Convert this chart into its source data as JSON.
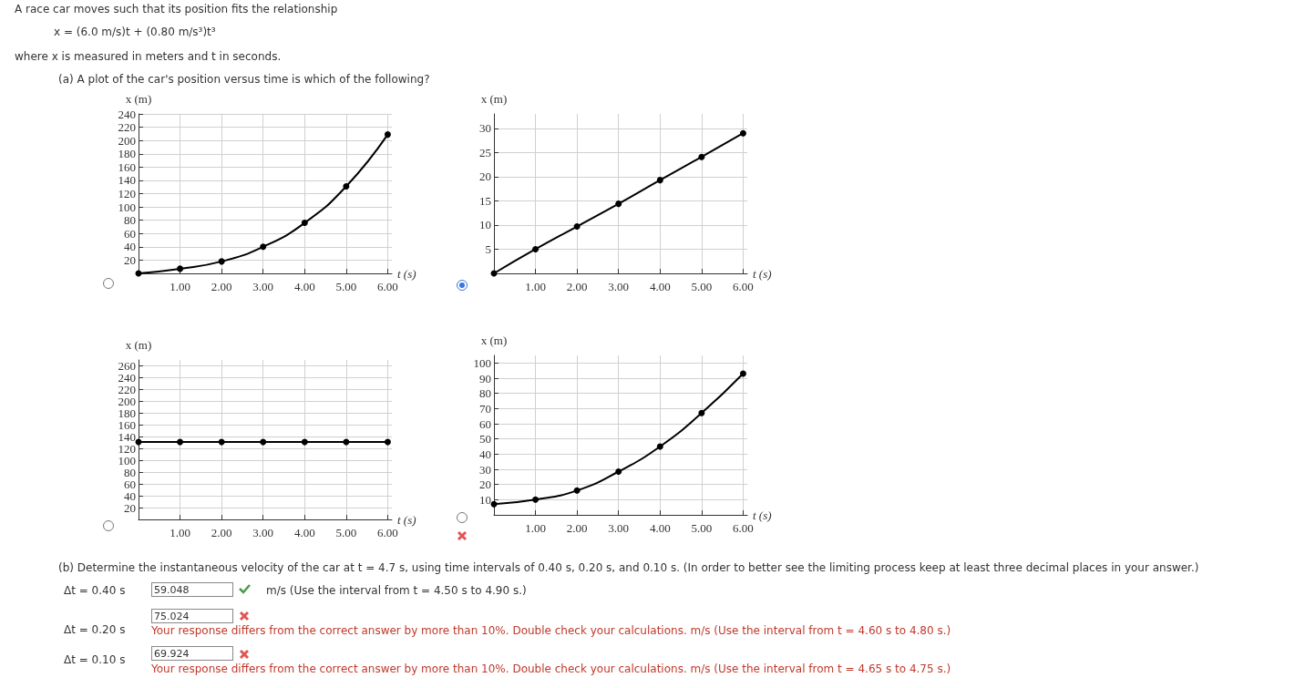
{
  "chart_data": [
    {
      "type": "line",
      "title": "A race car moves such that its position fits the relationship",
      "subtitle": "x = (6.0 m/s)t + (0.80 m/s³)t³",
      "annotations": [
        "where x is measured in meters and t in seconds.",
        "(a) A plot of the car's position versus time is which of the following?",
        "(b) Determine the instantaneous velocity of the car at t = 4.7 s, using time intervals of 0.40 s, 0.20 s, and 0.10 s. (In order to better see the limiting process keep at least three decimal places in your answer.)",
        "Δt = 0.40 s",
        "59.048",
        "m/s (Use the interval from t = 4.50 s to 4.90 s.)",
        "Δt = 0.20 s",
        "75.024",
        "Your response differs from the correct answer by more than 10%. Double check your calculations. m/s (Use the interval from t = 4.60 s to 4.80 s.)",
        "Δt = 0.10 s",
        "69.924",
        "Your response differs from the correct answer by more than 10%. Double check your calculations. m/s (Use the interval from t = 4.65 s to 4.75 s.)"
      ],
      "x": [
        0,
        1,
        2,
        3,
        4,
        5,
        6
      ],
      "xlabel": "t (s)",
      "ylabel": "x (m)",
      "series": [
        {
          "color": "#000000",
          "values": [
            0,
            7,
            18,
            40,
            76,
            131,
            209
          ]
        }
      ],
      "xlim": [
        0,
        6.1
      ],
      "xticks": [
        {
          "value": 1,
          "label": "1.00"
        },
        {
          "value": 2,
          "label": "2.00"
        },
        {
          "value": 3,
          "label": "3.00"
        },
        {
          "value": 4,
          "label": "4.00"
        },
        {
          "value": 5,
          "label": "5.00"
        },
        {
          "value": 6,
          "label": "6.00"
        }
      ],
      "ylim": [
        0,
        240
      ],
      "yticks": [
        20,
        40,
        60,
        80,
        100,
        120,
        140,
        160,
        180,
        200,
        220,
        240
      ],
      "grid": true,
      "marker": "circle"
    },
    {
      "type": "line",
      "x": [
        0,
        1,
        2,
        3,
        4,
        5,
        6
      ],
      "xlabel": "t (s)",
      "ylabel": "x (m)",
      "series": [
        {
          "color": "#000000",
          "values": [
            0,
            5,
            9.7,
            14.4,
            19.3,
            24.1,
            29
          ]
        }
      ],
      "xlim": [
        0,
        6.1
      ],
      "xticks": [
        {
          "value": 1,
          "label": "1.00"
        },
        {
          "value": 2,
          "label": "2.00"
        },
        {
          "value": 3,
          "label": "3.00"
        },
        {
          "value": 4,
          "label": "4.00"
        },
        {
          "value": 5,
          "label": "5.00"
        },
        {
          "value": 6,
          "label": "6.00"
        }
      ],
      "ylim": [
        0,
        33
      ],
      "yticks": [
        5,
        10,
        15,
        20,
        25,
        30
      ],
      "grid": true,
      "marker": "circle"
    },
    {
      "type": "line",
      "x": [
        0,
        1,
        2,
        3,
        4,
        5,
        6
      ],
      "xlabel": "t (s)",
      "ylabel": "x (m)",
      "series": [
        {
          "color": "#000000",
          "values": [
            131,
            131,
            131,
            131,
            131,
            131,
            131
          ]
        }
      ],
      "xlim": [
        0,
        6.1
      ],
      "xticks": [
        {
          "value": 1,
          "label": "1.00"
        },
        {
          "value": 2,
          "label": "2.00"
        },
        {
          "value": 3,
          "label": "3.00"
        },
        {
          "value": 4,
          "label": "4.00"
        },
        {
          "value": 5,
          "label": "5.00"
        },
        {
          "value": 6,
          "label": "6.00"
        }
      ],
      "ylim": [
        0,
        270
      ],
      "yticks": [
        20,
        40,
        60,
        80,
        100,
        120,
        140,
        160,
        180,
        200,
        220,
        240,
        260
      ],
      "grid": true,
      "marker": "circle"
    },
    {
      "type": "line",
      "x": [
        0,
        1,
        2,
        3,
        4,
        5,
        6
      ],
      "xlabel": "t (s)",
      "ylabel": "x (m)",
      "series": [
        {
          "color": "#000000",
          "values": [
            7,
            10,
            16,
            28.5,
            45,
            67,
            93
          ]
        }
      ],
      "xlim": [
        0,
        6.1
      ],
      "xticks": [
        {
          "value": 1,
          "label": "1.00"
        },
        {
          "value": 2,
          "label": "2.00"
        },
        {
          "value": 3,
          "label": "3.00"
        },
        {
          "value": 4,
          "label": "4.00"
        },
        {
          "value": 5,
          "label": "5.00"
        },
        {
          "value": 6,
          "label": "6.00"
        }
      ],
      "ylim": [
        0,
        105
      ],
      "yticks": [
        10,
        20,
        30,
        40,
        50,
        60,
        70,
        80,
        90,
        100
      ],
      "grid": true,
      "marker": "circle"
    }
  ]
}
